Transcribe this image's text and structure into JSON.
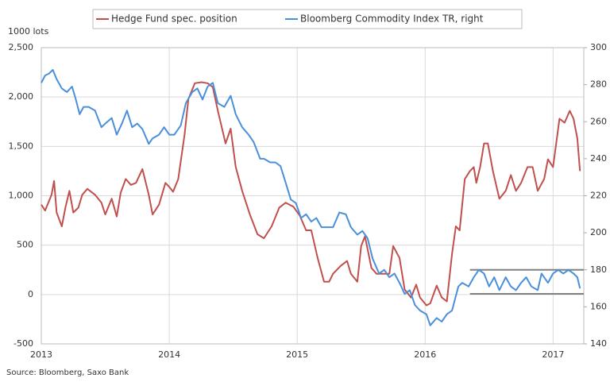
{
  "chart_data": {
    "type": "line",
    "ylabel": "1000 lots",
    "source": "Source: Bloomberg, Saxo Bank",
    "xlim": [
      2013,
      2017.24
    ],
    "xticks": [
      2013,
      2014,
      2015,
      2016,
      2017
    ],
    "ylim": [
      -500,
      2500
    ],
    "yticks": [
      -500,
      0,
      500,
      {
        "value": 1000,
        "label": "1,000"
      },
      {
        "value": 1500,
        "label": "1,500"
      },
      {
        "value": 2000,
        "label": "2,000"
      },
      {
        "value": 2500,
        "label": "2,500"
      }
    ],
    "y2lim": [
      140,
      300
    ],
    "y2ticks": [
      140,
      160,
      180,
      200,
      220,
      240,
      260,
      280,
      300
    ],
    "grid": true,
    "series": [
      {
        "name": "Hedge Fund spec. position",
        "color": "#c0504d",
        "x": [
          2013.0,
          2013.03,
          2013.08,
          2013.1,
          2013.12,
          2013.16,
          2013.19,
          2013.22,
          2013.25,
          2013.29,
          2013.32,
          2013.36,
          2013.42,
          2013.47,
          2013.5,
          2013.55,
          2013.59,
          2013.62,
          2013.66,
          2013.7,
          2013.74,
          2013.79,
          2013.84,
          2013.87,
          2013.92,
          2013.97,
          2014.0,
          2014.03,
          2014.07,
          2014.12,
          2014.15,
          2014.2,
          2014.25,
          2014.3,
          2014.34,
          2014.38,
          2014.44,
          2014.48,
          2014.52,
          2014.57,
          2014.63,
          2014.69,
          2014.74,
          2014.8,
          2014.86,
          2014.91,
          2014.97,
          2015.02,
          2015.07,
          2015.11,
          2015.16,
          2015.21,
          2015.25,
          2015.28,
          2015.34,
          2015.39,
          2015.42,
          2015.47,
          2015.5,
          2015.53,
          2015.58,
          2015.62,
          2015.67,
          2015.72,
          2015.75,
          2015.8,
          2015.84,
          2015.89,
          2015.93,
          2015.96,
          2016.01,
          2016.04,
          2016.09,
          2016.13,
          2016.17,
          2016.21,
          2016.24,
          2016.27,
          2016.31,
          2016.35,
          2016.38,
          2016.4,
          2016.43,
          2016.46,
          2016.49,
          2016.53,
          2016.58,
          2016.63,
          2016.67,
          2016.71,
          2016.75,
          2016.8,
          2016.84,
          2016.88,
          2016.93,
          2016.96,
          2017.0,
          2017.05,
          2017.09,
          2017.13,
          2017.16,
          2017.19,
          2017.21
        ],
        "values": [
          910,
          850,
          1010,
          1150,
          830,
          690,
          890,
          1050,
          830,
          880,
          1010,
          1070,
          1010,
          930,
          810,
          970,
          790,
          1030,
          1170,
          1110,
          1130,
          1270,
          1010,
          810,
          910,
          1130,
          1090,
          1040,
          1170,
          1620,
          1980,
          2140,
          2150,
          2140,
          2100,
          1860,
          1530,
          1680,
          1290,
          1050,
          810,
          610,
          570,
          690,
          880,
          930,
          890,
          800,
          650,
          650,
          370,
          130,
          130,
          210,
          290,
          340,
          210,
          130,
          490,
          590,
          270,
          210,
          210,
          210,
          490,
          370,
          50,
          -30,
          100,
          -30,
          -110,
          -90,
          90,
          -30,
          -70,
          410,
          690,
          650,
          1170,
          1250,
          1290,
          1130,
          1290,
          1530,
          1530,
          1250,
          970,
          1050,
          1210,
          1050,
          1130,
          1290,
          1290,
          1050,
          1170,
          1370,
          1290,
          1780,
          1740,
          1860,
          1780,
          1580,
          1250
        ]
      },
      {
        "name": "Bloomberg Commodity Index TR, right",
        "color": "#4a8fd9",
        "axis": "y2",
        "x": [
          2013.0,
          2013.03,
          2013.06,
          2013.09,
          2013.12,
          2013.16,
          2013.2,
          2013.24,
          2013.27,
          2013.3,
          2013.33,
          2013.37,
          2013.42,
          2013.47,
          2013.5,
          2013.55,
          2013.59,
          2013.63,
          2013.67,
          2013.71,
          2013.75,
          2013.79,
          2013.84,
          2013.87,
          2013.92,
          2013.96,
          2014.0,
          2014.04,
          2014.09,
          2014.13,
          2014.18,
          2014.22,
          2014.26,
          2014.3,
          2014.34,
          2014.38,
          2014.43,
          2014.48,
          2014.52,
          2014.57,
          2014.62,
          2014.66,
          2014.71,
          2014.74,
          2014.79,
          2014.83,
          2014.87,
          2014.91,
          2014.95,
          2014.99,
          2015.03,
          2015.07,
          2015.11,
          2015.15,
          2015.19,
          2015.23,
          2015.28,
          2015.33,
          2015.38,
          2015.42,
          2015.47,
          2015.51,
          2015.55,
          2015.59,
          2015.64,
          2015.68,
          2015.72,
          2015.76,
          2015.8,
          2015.84,
          2015.88,
          2015.92,
          2015.96,
          2016.01,
          2016.04,
          2016.09,
          2016.13,
          2016.17,
          2016.21,
          2016.26,
          2016.29,
          2016.34,
          2016.38,
          2016.42,
          2016.46,
          2016.5,
          2016.54,
          2016.58,
          2016.63,
          2016.67,
          2016.71,
          2016.75,
          2016.79,
          2016.83,
          2016.88,
          2016.91,
          2016.96,
          2017.0,
          2017.04,
          2017.08,
          2017.12,
          2017.16,
          2017.19,
          2017.21
        ],
        "values": [
          281,
          285,
          286,
          288,
          283,
          278,
          276,
          279,
          272,
          264,
          268,
          268,
          266,
          257,
          259,
          262,
          253,
          259,
          266,
          257,
          259,
          256,
          248,
          251,
          253,
          257,
          253,
          253,
          258,
          270,
          276,
          278,
          272,
          279,
          281,
          270,
          268,
          274,
          264,
          257,
          253,
          249,
          240,
          240,
          238,
          238,
          236,
          227,
          218,
          216,
          208,
          210,
          206,
          208,
          203,
          203,
          203,
          211,
          210,
          203,
          199,
          201,
          197,
          186,
          178,
          180,
          176,
          178,
          173,
          167,
          169,
          161,
          158,
          156,
          150,
          154,
          152,
          156,
          158,
          171,
          173,
          171,
          176,
          180,
          178,
          171,
          176,
          169,
          176,
          171,
          169,
          173,
          176,
          171,
          169,
          178,
          173,
          178,
          180,
          178,
          180,
          178,
          176,
          170
        ]
      }
    ],
    "reference_lines": [
      {
        "y": 180,
        "x": [
          2016.35,
          2017.24
        ],
        "axis": "y2",
        "color": "#808080"
      },
      {
        "y": 167,
        "x": [
          2016.35,
          2017.24
        ],
        "axis": "y2",
        "color": "#808080"
      }
    ]
  }
}
